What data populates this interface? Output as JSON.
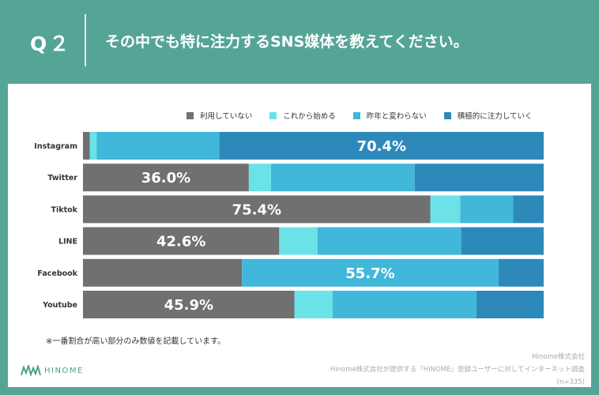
{
  "header": {
    "q_number": "Q２",
    "question": "その中でも特に注力するSNS媒体を教えてください。"
  },
  "legend": [
    {
      "label": "利用していない",
      "color": "#707070"
    },
    {
      "label": "これから始める",
      "color": "#6be2e8"
    },
    {
      "label": "昨年と変わらない",
      "color": "#41b7d9"
    },
    {
      "label": "積極的に注力していく",
      "color": "#2e89bb"
    }
  ],
  "chart_data": {
    "type": "bar",
    "orientation": "horizontal",
    "stacked": true,
    "categories": [
      "Instagram",
      "Twitter",
      "Tiktok",
      "LINE",
      "Facebook",
      "Youtube"
    ],
    "series": [
      {
        "name": "利用していない",
        "values": [
          1.5,
          36.0,
          75.4,
          42.6,
          34.5,
          45.9
        ]
      },
      {
        "name": "これから始める",
        "values": [
          1.5,
          4.8,
          6.5,
          8.3,
          0.0,
          8.3
        ]
      },
      {
        "name": "昨年と変わらない",
        "values": [
          26.6,
          31.2,
          11.5,
          31.2,
          55.7,
          31.2
        ]
      },
      {
        "name": "積極的に注力していく",
        "values": [
          70.4,
          28.0,
          6.6,
          17.9,
          9.8,
          14.6
        ]
      }
    ],
    "labeled": [
      {
        "category": "Instagram",
        "series": 3,
        "text": "70.4%"
      },
      {
        "category": "Twitter",
        "series": 0,
        "text": "36.0%"
      },
      {
        "category": "Tiktok",
        "series": 0,
        "text": "75.4%"
      },
      {
        "category": "LINE",
        "series": 0,
        "text": "42.6%"
      },
      {
        "category": "Facebook",
        "series": 2,
        "text": "55.7%"
      },
      {
        "category": "Youtube",
        "series": 0,
        "text": "45.9%"
      }
    ],
    "xlim": [
      0,
      100
    ]
  },
  "note": "※一番割合が高い部分のみ数値を記載しています。",
  "logo": {
    "text": "HINOME"
  },
  "source": {
    "company": "Hinome株式会社",
    "description": "Hinome株式会社が提供する『HINOME』登録ユーザーに対してインターネット調査",
    "sample": "(n=335)"
  }
}
